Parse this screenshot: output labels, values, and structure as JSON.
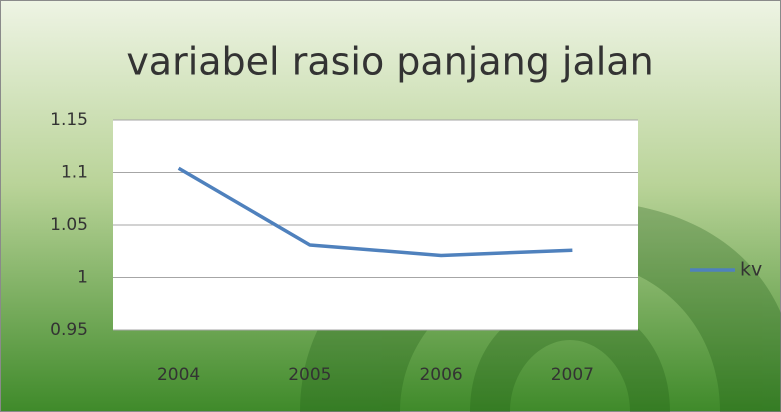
{
  "chart_data": {
    "type": "line",
    "title": "variabel rasio panjang jalan",
    "categories": [
      "2004",
      "2005",
      "2006",
      "2007"
    ],
    "series": [
      {
        "name": "kv",
        "color": "#4f81bd",
        "values": [
          1.104,
          1.031,
          1.021,
          1.026
        ]
      }
    ],
    "ylim": [
      0.95,
      1.15
    ],
    "yticks": [
      0.95,
      1,
      1.05,
      1.1,
      1.15
    ],
    "grid": true,
    "legend": "right"
  }
}
